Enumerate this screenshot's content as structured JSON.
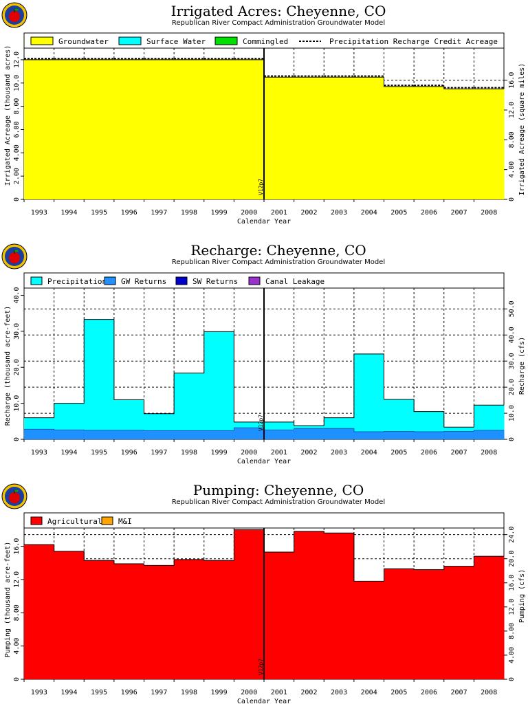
{
  "chart_data": [
    {
      "type": "area",
      "title": "Irrigated Acres: Cheyenne, CO",
      "subtitle": "Republican River Compact Administration Groundwater Model",
      "xlabel": "Calendar Year",
      "ylabel": "Irrigated Acreage (thousand acres)",
      "y2label": "Irrigated Acreage (square miles)",
      "categories": [
        "1993",
        "1994",
        "1995",
        "1996",
        "1997",
        "1998",
        "1999",
        "2000",
        "2001",
        "2002",
        "2003",
        "2004",
        "2005",
        "2006",
        "2007",
        "2008"
      ],
      "ylim": [
        0,
        13.0
      ],
      "yticks": [
        "0",
        "2.00",
        "4.00",
        "6.00",
        "8.00",
        "10.0",
        "12.0"
      ],
      "y2lim": [
        0,
        20.31
      ],
      "y2ticks": [
        "0",
        "4.00",
        "8.00",
        "12.0",
        "16.0"
      ],
      "grid": true,
      "legend_position": "top",
      "series": [
        {
          "name": "Groundwater",
          "color": "#ffff00",
          "values": [
            12.0,
            12.0,
            12.0,
            12.0,
            12.0,
            12.0,
            12.0,
            12.0,
            10.5,
            10.5,
            10.5,
            10.5,
            9.7,
            9.7,
            9.5,
            9.5
          ]
        },
        {
          "name": "Surface Water",
          "color": "#00ffff",
          "values": [
            0,
            0,
            0,
            0,
            0,
            0,
            0,
            0,
            0,
            0,
            0,
            0,
            0,
            0,
            0,
            0
          ]
        },
        {
          "name": "Commingled",
          "color": "#00e000",
          "values": [
            0,
            0,
            0,
            0,
            0,
            0,
            0,
            0,
            0,
            0,
            0,
            0,
            0,
            0,
            0,
            0
          ]
        },
        {
          "name": "Precipitation Recharge Credit Acreage",
          "style": "dashed",
          "color": "#000000",
          "values": [
            12.1,
            12.1,
            12.1,
            12.1,
            12.1,
            12.1,
            12.1,
            12.1,
            10.6,
            10.6,
            10.6,
            10.6,
            9.8,
            9.8,
            9.6,
            9.6
          ]
        }
      ],
      "annotation": {
        "text": "V12p7",
        "at": "2000-2001"
      }
    },
    {
      "type": "area",
      "title": "Recharge: Cheyenne, CO",
      "subtitle": "Republican River Compact Administration Groundwater Model",
      "xlabel": "Calendar Year",
      "ylabel": "Recharge (thousand acre-feet)",
      "y2label": "Recharge (cfs)",
      "categories": [
        "1993",
        "1994",
        "1995",
        "1996",
        "1997",
        "1998",
        "1999",
        "2000",
        "2001",
        "2002",
        "2003",
        "2004",
        "2005",
        "2006",
        "2007",
        "2008"
      ],
      "ylim": [
        0,
        42.0
      ],
      "yticks": [
        "0",
        "10.0",
        "20.0",
        "30.0",
        "40.0"
      ],
      "y2lim": [
        0,
        58.0
      ],
      "y2ticks": [
        "0",
        "10.0",
        "20.0",
        "30.0",
        "40.0",
        "50.0"
      ],
      "grid": true,
      "legend_position": "top",
      "series": [
        {
          "name": "Precipitation",
          "color": "#00ffff",
          "values": [
            3.2,
            7.4,
            30.8,
            8.5,
            4.7,
            16.0,
            27.5,
            1.6,
            2.2,
            0.8,
            3.0,
            21.6,
            8.9,
            5.6,
            1.2,
            7.0
          ]
        },
        {
          "name": "GW Returns",
          "color": "#1e90ff",
          "values": [
            2.8,
            2.6,
            2.5,
            2.5,
            2.4,
            2.4,
            2.4,
            3.2,
            2.6,
            3.0,
            3.0,
            2.1,
            2.2,
            2.1,
            2.2,
            2.5
          ]
        },
        {
          "name": "SW Returns",
          "color": "#0000cd",
          "values": [
            0,
            0,
            0,
            0,
            0,
            0,
            0,
            0,
            0,
            0,
            0,
            0,
            0,
            0,
            0,
            0
          ]
        },
        {
          "name": "Canal Leakage",
          "color": "#9932cc",
          "values": [
            0,
            0,
            0,
            0,
            0,
            0,
            0,
            0,
            0,
            0,
            0,
            0,
            0,
            0,
            0,
            0
          ]
        }
      ],
      "annotation": {
        "text": "V12p7",
        "at": "2000-2001"
      }
    },
    {
      "type": "area",
      "title": "Pumping: Cheyenne, CO",
      "subtitle": "Republican River Compact Administration Groundwater Model",
      "xlabel": "Calendar Year",
      "ylabel": "Pumping (thousand acre-feet)",
      "y2label": "Pumping (cfs)",
      "categories": [
        "1993",
        "1994",
        "1995",
        "1996",
        "1997",
        "1998",
        "1999",
        "2000",
        "2001",
        "2002",
        "2003",
        "2004",
        "2005",
        "2006",
        "2007",
        "2008"
      ],
      "ylim": [
        0,
        18.2
      ],
      "yticks": [
        "0",
        "4.00",
        "8.00",
        "12.0",
        "16.0"
      ],
      "y2lim": [
        0,
        25.1
      ],
      "y2ticks": [
        "0",
        "4.00",
        "8.00",
        "12.0",
        "16.0",
        "20.0",
        "24.0"
      ],
      "grid": true,
      "legend_position": "top",
      "series": [
        {
          "name": "Agricultural",
          "color": "#ff0000",
          "values": [
            16.2,
            15.4,
            14.3,
            13.9,
            13.7,
            14.4,
            14.3,
            18.0,
            15.3,
            17.8,
            17.6,
            11.8,
            13.3,
            13.2,
            13.6,
            14.8
          ]
        },
        {
          "name": "M&I",
          "color": "#ffa500",
          "values": [
            0,
            0,
            0,
            0,
            0,
            0,
            0,
            0,
            0,
            0,
            0,
            0,
            0,
            0,
            0,
            0
          ]
        }
      ],
      "annotation": {
        "text": "V12p7",
        "at": "2000-2001"
      }
    }
  ]
}
